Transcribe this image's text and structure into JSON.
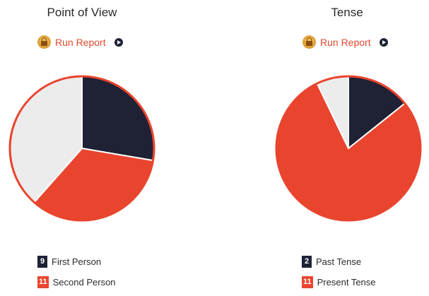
{
  "chart_data": [
    {
      "type": "pie",
      "title": "Point of View",
      "report_label": "Run Report",
      "slices": [
        {
          "label": "First Person",
          "value": 9,
          "color": "#1f2235",
          "in_legend": true
        },
        {
          "label": "Second Person",
          "value": 11,
          "color": "#e9452e",
          "in_legend": true
        },
        {
          "label": "",
          "value": 12.5,
          "color": "#ececec",
          "in_legend": false
        }
      ]
    },
    {
      "type": "pie",
      "title": "Tense",
      "report_label": "Run Report",
      "slices": [
        {
          "label": "Past Tense",
          "value": 2,
          "color": "#1f2235",
          "in_legend": true
        },
        {
          "label": "Present Tense",
          "value": 11,
          "color": "#e9452e",
          "in_legend": true
        },
        {
          "label": "",
          "value": 1,
          "color": "#ececec",
          "in_legend": false
        }
      ]
    }
  ]
}
